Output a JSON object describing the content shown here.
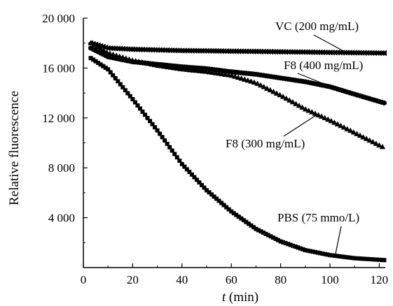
{
  "chart_data": {
    "type": "scatter",
    "xlabel_italic": "t",
    "xlabel_rest": " (min)",
    "ylabel": "Relative fluorescence",
    "xlim": [
      0,
      125
    ],
    "ylim": [
      0,
      20000
    ],
    "x_ticks": [
      "0",
      "20",
      "40",
      "60",
      "80",
      "100",
      "120"
    ],
    "x_tick_values": [
      0,
      20,
      40,
      60,
      80,
      100,
      120
    ],
    "y_ticks": [
      "4 000",
      "8 000",
      "12 000",
      "16 000",
      "20 000"
    ],
    "y_tick_values": [
      4000,
      8000,
      12000,
      16000,
      20000
    ],
    "grid": false,
    "series": [
      {
        "name": "VC (200 mg/mL)",
        "marker": "triangle-left",
        "x": [
          3,
          10,
          20,
          30,
          40,
          50,
          60,
          70,
          80,
          90,
          100,
          110,
          122
        ],
        "y": [
          18000,
          17600,
          17500,
          17450,
          17400,
          17380,
          17350,
          17330,
          17300,
          17280,
          17250,
          17230,
          17200
        ]
      },
      {
        "name": "F8 (400 mg/mL)",
        "marker": "circle",
        "x": [
          3,
          10,
          20,
          30,
          40,
          50,
          60,
          70,
          80,
          90,
          100,
          110,
          122
        ],
        "y": [
          17600,
          16900,
          16500,
          16300,
          16100,
          15950,
          15700,
          15500,
          15200,
          14900,
          14500,
          13900,
          13200
        ]
      },
      {
        "name": "F8 (300 mg/mL)",
        "marker": "triangle-up",
        "x": [
          3,
          10,
          20,
          30,
          40,
          50,
          60,
          70,
          80,
          90,
          100,
          110,
          122
        ],
        "y": [
          18000,
          17200,
          16600,
          16200,
          15900,
          15700,
          15400,
          14800,
          13800,
          12700,
          11800,
          10800,
          9600
        ]
      },
      {
        "name": "PBS (75 mmo/L)",
        "marker": "square",
        "x": [
          3,
          10,
          20,
          30,
          40,
          50,
          60,
          70,
          80,
          90,
          100,
          110,
          122
        ],
        "y": [
          16800,
          15900,
          13500,
          11000,
          8300,
          6200,
          4500,
          3100,
          2100,
          1400,
          1000,
          750,
          600
        ]
      }
    ],
    "annotations": [
      {
        "text": "VC (200 mg/mL)",
        "series": 0,
        "point_x": 107,
        "point_y": 17200
      },
      {
        "text": "F8 (400 mg/mL)",
        "series": 1,
        "point_x": 103,
        "point_y": 14300
      },
      {
        "text": "F8 (300 mg/mL)",
        "series": 2,
        "point_x": 95,
        "point_y": 12300
      },
      {
        "text": "PBS (75 mmo/L)",
        "series": 3,
        "point_x": 102,
        "point_y": 850
      }
    ]
  }
}
